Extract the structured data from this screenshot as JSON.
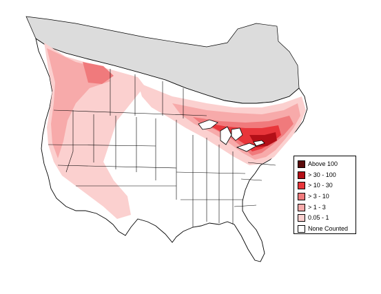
{
  "legend": {
    "items": [
      {
        "label": "Above 100",
        "color": "#5a0b0b"
      },
      {
        "label": "> 30 - 100",
        "color": "#b30f17"
      },
      {
        "label": "> 10 - 30",
        "color": "#e8363b"
      },
      {
        "label": "> 3 - 10",
        "color": "#f07a7c"
      },
      {
        "label": "> 1 - 3",
        "color": "#f7aaaa"
      },
      {
        "label": "0.05 - 1",
        "color": "#fbd0cf"
      },
      {
        "label": "None Counted",
        "color": "#ffffff"
      }
    ]
  },
  "map": {
    "no_data_color": "#dcdcdc",
    "land_color": "#ffffff",
    "border_color": "#000000"
  }
}
